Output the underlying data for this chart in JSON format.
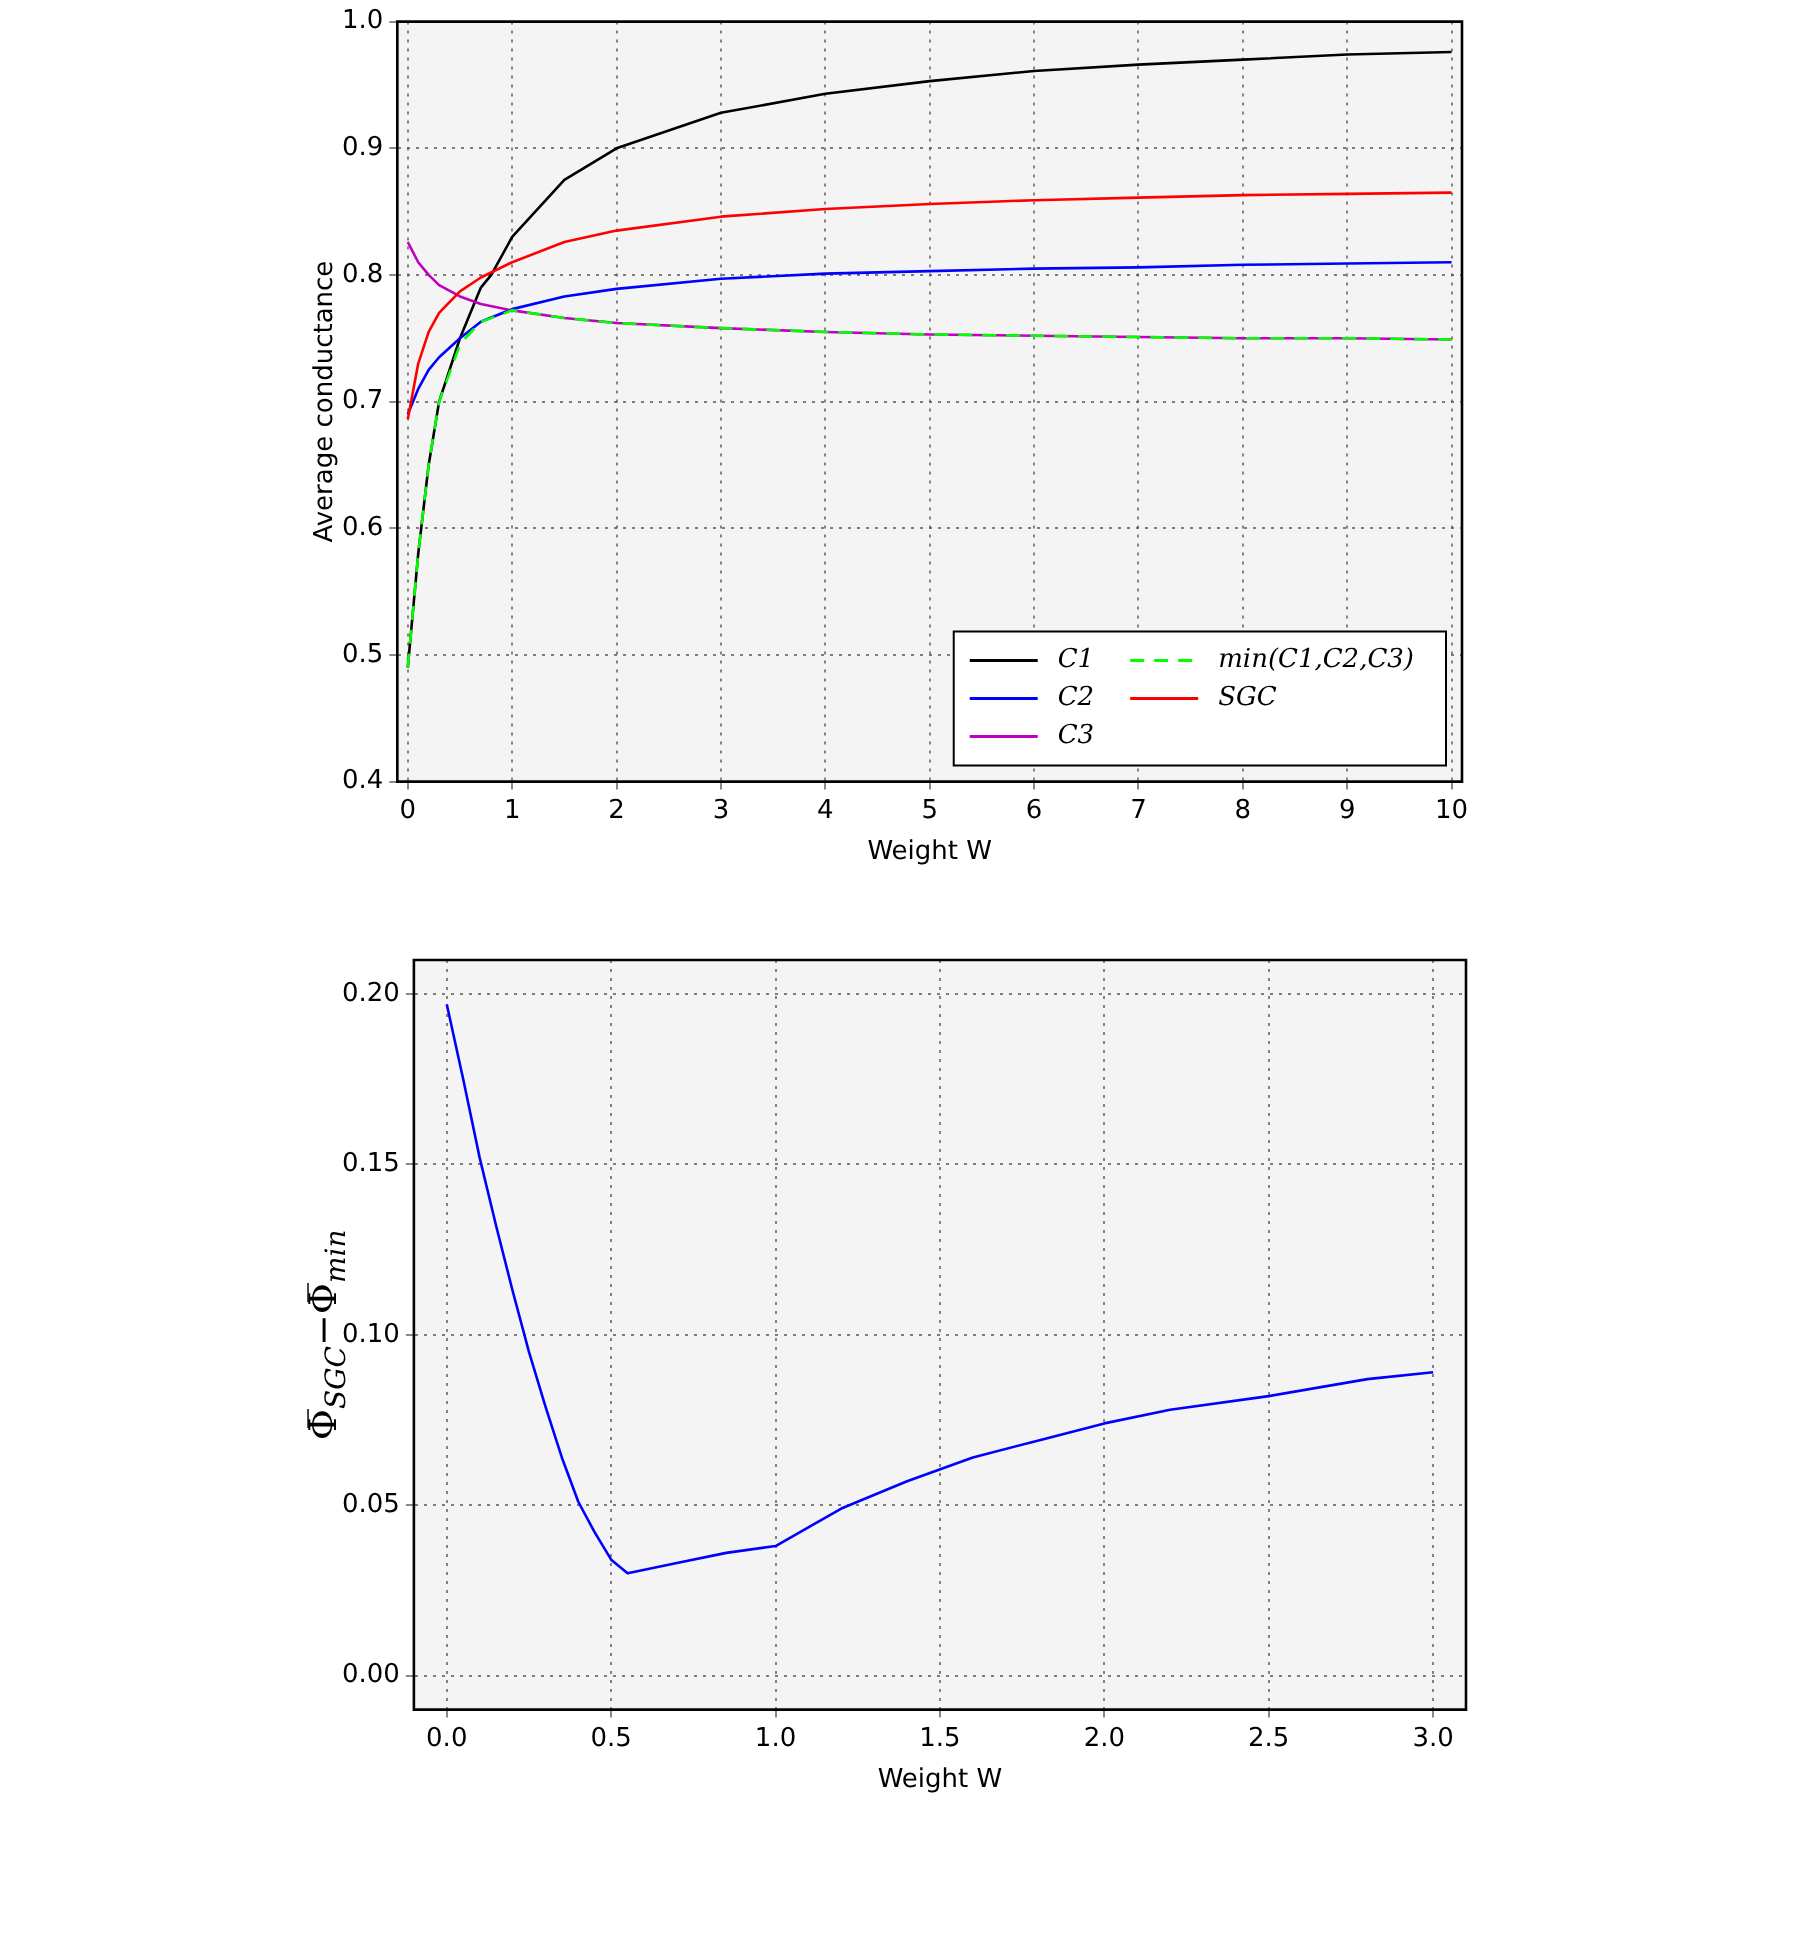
{
  "chart_data": [
    {
      "type": "line",
      "xlabel": "Weight W",
      "ylabel": "Average conductance",
      "xlim": [
        -0.1,
        10.1
      ],
      "ylim": [
        0.4,
        1.0
      ],
      "xticks": [
        0,
        1,
        2,
        3,
        4,
        5,
        6,
        7,
        8,
        9,
        10
      ],
      "yticks": [
        {
          "value": 0.4,
          "label": "0.4"
        },
        {
          "value": 0.5,
          "label": "0.5"
        },
        {
          "value": 0.6,
          "label": "0.6"
        },
        {
          "value": 0.7,
          "label": "0.7"
        },
        {
          "value": 0.8,
          "label": "0.8"
        },
        {
          "value": 0.9,
          "label": "0.9"
        },
        {
          "value": 1.0,
          "label": "1.0"
        }
      ],
      "grid": true,
      "legend": "bottom right",
      "series": [
        {
          "name": "C1",
          "color": "#000000",
          "x": [
            0,
            0.1,
            0.2,
            0.3,
            0.5,
            0.7,
            0.8,
            1,
            1.5,
            2,
            3,
            4,
            5,
            6,
            7,
            8,
            9,
            10
          ],
          "values": [
            0.49,
            0.58,
            0.65,
            0.7,
            0.75,
            0.79,
            0.8,
            0.83,
            0.875,
            0.9,
            0.928,
            0.943,
            0.953,
            0.961,
            0.966,
            0.97,
            0.974,
            0.976
          ]
        },
        {
          "name": "C2",
          "color": "#0000ff",
          "x": [
            0,
            0.1,
            0.2,
            0.3,
            0.5,
            0.7,
            1,
            1.5,
            2,
            3,
            4,
            5,
            6,
            7,
            8,
            9,
            10
          ],
          "values": [
            0.69,
            0.71,
            0.725,
            0.735,
            0.75,
            0.763,
            0.773,
            0.783,
            0.789,
            0.797,
            0.801,
            0.803,
            0.805,
            0.806,
            0.808,
            0.809,
            0.81
          ]
        },
        {
          "name": "C3",
          "color": "#bf00bf",
          "x": [
            0,
            0.1,
            0.2,
            0.3,
            0.5,
            0.7,
            1,
            1.5,
            2,
            3,
            4,
            5,
            6,
            7,
            8,
            9,
            10
          ],
          "values": [
            0.826,
            0.81,
            0.8,
            0.792,
            0.783,
            0.777,
            0.772,
            0.766,
            0.762,
            0.758,
            0.755,
            0.753,
            0.752,
            0.751,
            0.75,
            0.75,
            0.749
          ]
        },
        {
          "name": "min(C1,C2,C3)",
          "color": "#00ff00",
          "line_style": "dashed",
          "x": [
            0,
            0.1,
            0.2,
            0.3,
            0.5,
            0.55,
            0.7,
            1,
            1.5,
            2,
            3,
            4,
            5,
            6,
            7,
            8,
            9,
            10
          ],
          "values": [
            0.49,
            0.58,
            0.65,
            0.7,
            0.745,
            0.75,
            0.763,
            0.772,
            0.766,
            0.762,
            0.758,
            0.755,
            0.753,
            0.752,
            0.751,
            0.75,
            0.75,
            0.749
          ]
        },
        {
          "name": "SGC",
          "color": "#ff0000",
          "x": [
            0,
            0.1,
            0.2,
            0.3,
            0.5,
            0.7,
            1,
            1.5,
            2,
            3,
            4,
            5,
            6,
            7,
            8,
            9,
            10
          ],
          "values": [
            0.686,
            0.73,
            0.755,
            0.77,
            0.787,
            0.798,
            0.81,
            0.826,
            0.835,
            0.846,
            0.852,
            0.856,
            0.859,
            0.861,
            0.863,
            0.864,
            0.865
          ]
        }
      ]
    },
    {
      "type": "line",
      "xlabel": "Weight W",
      "ylabel": "Φ̅$_{SGC}$−Φ̅$_{min}$",
      "xlim": [
        -0.1,
        3.1
      ],
      "ylim": [
        -0.01,
        0.21
      ],
      "xticks": [
        {
          "value": 0,
          "label": "0.0"
        },
        {
          "value": 0.5,
          "label": "0.5"
        },
        {
          "value": 1,
          "label": "1.0"
        },
        {
          "value": 1.5,
          "label": "1.5"
        },
        {
          "value": 2,
          "label": "2.0"
        },
        {
          "value": 2.5,
          "label": "2.5"
        },
        {
          "value": 3,
          "label": "3.0"
        }
      ],
      "yticks": [
        {
          "value": 0,
          "label": "0.00"
        },
        {
          "value": 0.05,
          "label": "0.05"
        },
        {
          "value": 0.1,
          "label": "0.10"
        },
        {
          "value": 0.15,
          "label": "0.15"
        },
        {
          "value": 0.2,
          "label": "0.20"
        }
      ],
      "grid": true,
      "series": [
        {
          "color": "#0000ff",
          "x": [
            0,
            0.05,
            0.1,
            0.15,
            0.2,
            0.25,
            0.3,
            0.35,
            0.4,
            0.45,
            0.5,
            0.55,
            0.7,
            0.85,
            1.0,
            1.2,
            1.4,
            1.6,
            1.8,
            2.0,
            2.2,
            2.5,
            2.8,
            3.0
          ],
          "values": [
            0.197,
            0.175,
            0.152,
            0.132,
            0.113,
            0.095,
            0.079,
            0.064,
            0.051,
            0.042,
            0.034,
            0.03,
            0.033,
            0.036,
            0.038,
            0.049,
            0.057,
            0.064,
            0.069,
            0.074,
            0.078,
            0.082,
            0.087,
            0.089
          ]
        }
      ]
    }
  ]
}
